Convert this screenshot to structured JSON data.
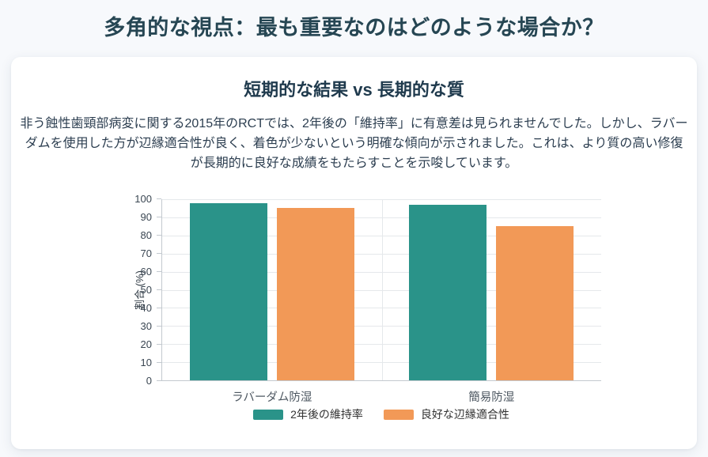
{
  "page": {
    "title": "多角的な視点：最も重要なのはどのような場合か？"
  },
  "card": {
    "title": "短期的な結果 vs 長期的な質",
    "description": "非う蝕性歯頸部病変に関する2015年のRCTでは、2年後の「維持率」に有意差は見られませんでした。しかし、ラバーダムを使用した方が辺縁適合性が良く、着色が少ないという明確な傾向が示されました。これは、より質の高い修復が長期的に良好な成績をもたらすことを示唆しています。"
  },
  "chart_data": {
    "type": "bar",
    "title": "",
    "categories": [
      "ラバーダム防湿",
      "簡易防湿"
    ],
    "series": [
      {
        "name": "2年後の維持率",
        "color": "#2a9389",
        "values": [
          98,
          97
        ]
      },
      {
        "name": "良好な辺縁適合性",
        "color": "#f29957",
        "values": [
          95,
          85
        ]
      }
    ],
    "xlabel": "",
    "ylabel": "割合 (%)",
    "ylim": [
      0,
      100
    ],
    "ytick_step": 10,
    "grid": true,
    "legend_position": "bottom"
  },
  "colors": {
    "page_background": "#f7f9fc",
    "card_background": "#ffffff",
    "heading": "#264653",
    "body_text": "#2c3e50",
    "series_teal": "#2a9389",
    "series_orange": "#f29957"
  }
}
